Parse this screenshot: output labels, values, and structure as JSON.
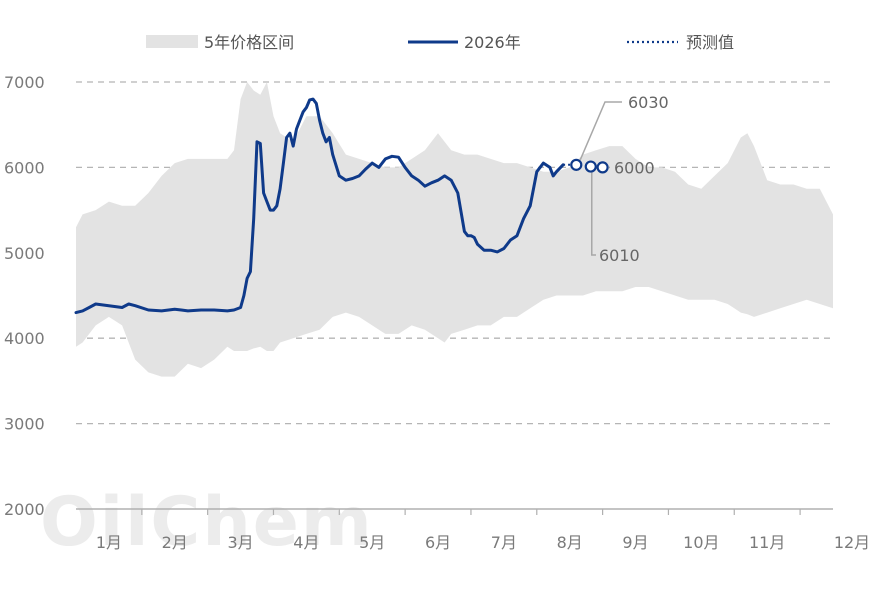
{
  "watermark": "OilChem",
  "chart_data": {
    "type": "line",
    "title": "",
    "xlabel": "",
    "ylabel": "",
    "ylim": [
      2000,
      7000
    ],
    "yticks": [
      2000,
      3000,
      4000,
      5000,
      6000,
      7000
    ],
    "xlim": [
      0.5,
      12
    ],
    "categories": [
      "1月",
      "2月",
      "3月",
      "4月",
      "5月",
      "6月",
      "7月",
      "8月",
      "9月",
      "10月",
      "11月",
      "12月"
    ],
    "grid": "horizontal dashed",
    "legend_position": "top",
    "legend": [
      {
        "label": "5年价格区间",
        "type": "band",
        "color": "#e3e3e3"
      },
      {
        "label": "2026年",
        "type": "line",
        "color": "#0f3a8a"
      },
      {
        "label": "预测值",
        "type": "dotted",
        "color": "#0f3a8a"
      }
    ],
    "series": [
      {
        "name": "5年价格区间",
        "type": "band",
        "color": "#e3e3e3",
        "x": [
          0.5,
          0.6,
          0.8,
          1.0,
          1.2,
          1.4,
          1.6,
          1.8,
          2.0,
          2.2,
          2.4,
          2.6,
          2.8,
          2.9,
          3.0,
          3.1,
          3.2,
          3.3,
          3.4,
          3.5,
          3.6,
          3.8,
          4.0,
          4.2,
          4.4,
          4.6,
          4.8,
          5.0,
          5.2,
          5.4,
          5.6,
          5.8,
          6.0,
          6.1,
          6.2,
          6.4,
          6.6,
          6.8,
          7.0,
          7.2,
          7.4,
          7.6,
          7.8,
          8.0,
          8.2,
          8.4,
          8.6,
          8.8,
          9.0,
          9.2,
          9.4,
          9.6,
          9.8,
          10.0,
          10.2,
          10.4,
          10.5,
          10.6,
          10.7,
          10.8,
          11.0,
          11.2,
          11.4,
          11.6,
          11.8,
          12.0
        ],
        "upper": [
          5300,
          5450,
          5500,
          5600,
          5550,
          5550,
          5700,
          5900,
          6050,
          6100,
          6100,
          6100,
          6100,
          6200,
          6800,
          7000,
          6900,
          6850,
          7000,
          6600,
          6400,
          6300,
          6600,
          6600,
          6400,
          6150,
          6100,
          6050,
          6000,
          6000,
          6100,
          6200,
          6400,
          6300,
          6200,
          6150,
          6150,
          6100,
          6050,
          6050,
          6000,
          5950,
          5950,
          6000,
          6150,
          6200,
          6250,
          6250,
          6100,
          6000,
          6000,
          5950,
          5800,
          5750,
          5900,
          6050,
          6200,
          6350,
          6400,
          6250,
          5850,
          5800,
          5800,
          5750,
          5750,
          5450
        ],
        "lower": [
          3900,
          3950,
          4150,
          4250,
          4150,
          3750,
          3600,
          3550,
          3550,
          3700,
          3650,
          3750,
          3900,
          3850,
          3850,
          3850,
          3880,
          3900,
          3850,
          3850,
          3950,
          4000,
          4050,
          4100,
          4250,
          4300,
          4250,
          4150,
          4050,
          4050,
          4150,
          4100,
          4000,
          3950,
          4050,
          4100,
          4150,
          4150,
          4250,
          4250,
          4350,
          4450,
          4500,
          4500,
          4500,
          4550,
          4550,
          4550,
          4600,
          4600,
          4550,
          4500,
          4450,
          4450,
          4450,
          4400,
          4350,
          4300,
          4280,
          4250,
          4300,
          4350,
          4400,
          4450,
          4400,
          4350
        ]
      },
      {
        "name": "2026年",
        "type": "line",
        "color": "#0f3a8a",
        "x": [
          0.5,
          0.6,
          0.7,
          0.8,
          1.0,
          1.2,
          1.3,
          1.4,
          1.6,
          1.8,
          2.0,
          2.1,
          2.2,
          2.4,
          2.6,
          2.8,
          2.9,
          3.0,
          3.05,
          3.1,
          3.15,
          3.2,
          3.25,
          3.3,
          3.35,
          3.4,
          3.45,
          3.5,
          3.55,
          3.6,
          3.65,
          3.7,
          3.75,
          3.8,
          3.85,
          3.9,
          3.95,
          4.0,
          4.05,
          4.1,
          4.15,
          4.2,
          4.25,
          4.3,
          4.35,
          4.4,
          4.5,
          4.6,
          4.7,
          4.8,
          4.9,
          5.0,
          5.1,
          5.2,
          5.3,
          5.4,
          5.5,
          5.6,
          5.7,
          5.8,
          5.9,
          6.0,
          6.1,
          6.2,
          6.3,
          6.4,
          6.45,
          6.5,
          6.55,
          6.6,
          6.7,
          6.8,
          6.9,
          7.0,
          7.1,
          7.2,
          7.3,
          7.4,
          7.5,
          7.6,
          7.7,
          7.75,
          7.8,
          7.9
        ],
        "y": [
          4300,
          4320,
          4360,
          4400,
          4380,
          4360,
          4400,
          4380,
          4330,
          4320,
          4340,
          4330,
          4320,
          4330,
          4330,
          4320,
          4330,
          4360,
          4500,
          4700,
          4780,
          5400,
          6300,
          6280,
          5700,
          5600,
          5500,
          5500,
          5550,
          5750,
          6050,
          6350,
          6400,
          6250,
          6450,
          6550,
          6650,
          6700,
          6790,
          6800,
          6750,
          6550,
          6400,
          6300,
          6350,
          6150,
          5900,
          5850,
          5870,
          5900,
          5980,
          6050,
          6000,
          6100,
          6130,
          6120,
          6000,
          5900,
          5850,
          5780,
          5820,
          5850,
          5900,
          5850,
          5700,
          5250,
          5200,
          5200,
          5180,
          5100,
          5030,
          5030,
          5010,
          5050,
          5150,
          5200,
          5400,
          5550,
          5950,
          6050,
          6000,
          5900,
          5950,
          6030
        ]
      },
      {
        "name": "预测值",
        "type": "dotted",
        "color": "#0f3a8a",
        "x": [
          7.9,
          8.0,
          8.1
        ],
        "y": [
          6030,
          6030,
          6030
        ]
      }
    ],
    "forecast_points": [
      {
        "x": 8.1,
        "y": 6030
      },
      {
        "x": 8.32,
        "y": 6010
      },
      {
        "x": 8.5,
        "y": 6000
      }
    ],
    "annotations": [
      {
        "text": "6030",
        "x": 8.1,
        "y": 6030
      },
      {
        "text": "6000",
        "x": 8.5,
        "y": 6000
      },
      {
        "text": "6010",
        "x": 8.32,
        "y": 6010
      }
    ]
  }
}
